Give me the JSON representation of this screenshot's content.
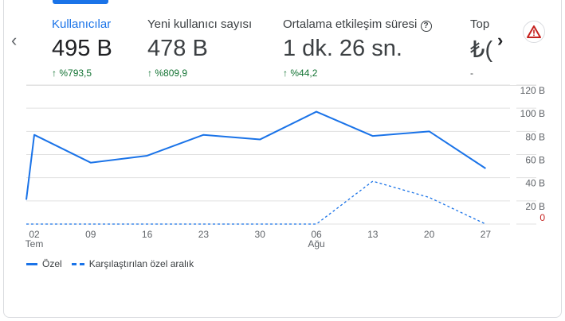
{
  "metrics": [
    {
      "label": "Kullanıcılar",
      "value": "495 B",
      "change": "%793,5"
    },
    {
      "label": "Yeni kullanıcı sayısı",
      "value": "478 B",
      "change": "%809,9"
    },
    {
      "label": "Ortalama etkileşim süresi",
      "value": "1 dk. 26 sn.",
      "change": "%44,2"
    },
    {
      "label": "Top",
      "value": "₺(",
      "change": "-"
    }
  ],
  "icons": {
    "prev": "chevron-left-icon",
    "next": "chevron-right-icon",
    "help": "help-circle-icon",
    "warning": "warning-triangle-icon",
    "up": "arrow-up-icon"
  },
  "colors": {
    "accent": "#1a73e8",
    "positive": "#137333",
    "warning": "#c5221f"
  },
  "chart_data": {
    "type": "line",
    "x_ticks": [
      "02",
      "09",
      "16",
      "23",
      "30",
      "06",
      "13",
      "20",
      "27"
    ],
    "x_month_labels": [
      {
        "tick": "02",
        "label": "Tem"
      },
      {
        "tick": "06",
        "label": "Ağu"
      }
    ],
    "y_ticks": [
      "0",
      "20 B",
      "40 B",
      "60 B",
      "80 B",
      "100 B",
      "120 B"
    ],
    "ylim": [
      0,
      120
    ],
    "y_unit": "B",
    "grid": true,
    "legend_position": "bottom-left",
    "series": [
      {
        "name": "Özel",
        "style": "solid",
        "start_value": 21,
        "values": [
          77,
          53,
          59,
          77,
          73,
          97,
          76,
          80,
          48
        ]
      },
      {
        "name": "Karşılaştırılan özel aralık",
        "style": "dashed",
        "start_value": 0,
        "values": [
          0,
          0,
          0,
          0,
          0,
          0,
          37,
          23,
          0
        ]
      }
    ]
  }
}
